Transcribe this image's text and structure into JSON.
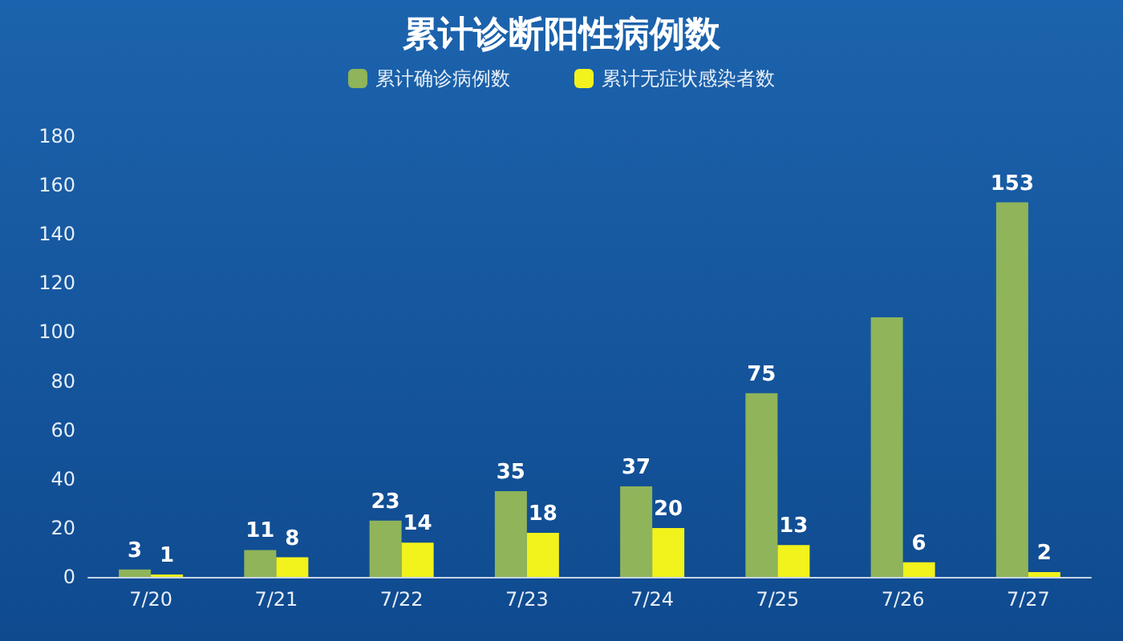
{
  "chart_data": {
    "type": "bar",
    "title": "累计诊断阳性病例数",
    "categories": [
      "7/20",
      "7/21",
      "7/22",
      "7/23",
      "7/24",
      "7/25",
      "7/26",
      "7/27"
    ],
    "series": [
      {
        "name": "累计确诊病例数",
        "color": "#8fb45a",
        "values": [
          3,
          11,
          23,
          35,
          37,
          75,
          106,
          153
        ],
        "value_labels": [
          "3",
          "11",
          "23",
          "35",
          "37",
          "75",
          null,
          "153"
        ]
      },
      {
        "name": "累计无症状感染者数",
        "color": "#f2f21c",
        "values": [
          1,
          8,
          14,
          18,
          20,
          13,
          6,
          2
        ],
        "value_labels": [
          "1",
          "8",
          "14",
          "18",
          "20",
          "13",
          "6",
          "2"
        ]
      }
    ],
    "ylim": [
      0,
      180
    ],
    "yticks": [
      0,
      20,
      40,
      60,
      80,
      100,
      120,
      140,
      160,
      180
    ],
    "grid": false,
    "legend": "top"
  }
}
